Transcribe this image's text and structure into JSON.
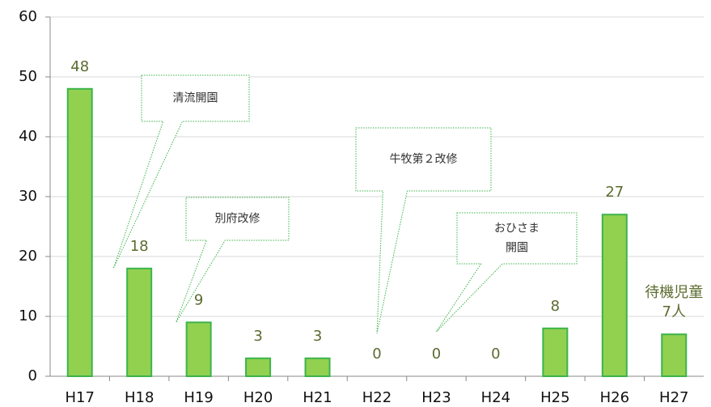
{
  "chart_data": {
    "type": "bar",
    "categories": [
      "H17",
      "H18",
      "H19",
      "H20",
      "H21",
      "H22",
      "H23",
      "H24",
      "H25",
      "H26",
      "H27"
    ],
    "values": [
      48,
      18,
      9,
      3,
      3,
      0,
      0,
      0,
      8,
      27,
      7
    ],
    "value_labels": [
      "48",
      "18",
      "9",
      "3",
      "3",
      "0",
      "0",
      "0",
      "8",
      "27",
      "待機児童\n7人"
    ],
    "color": "#92d050",
    "edge_color": "#3cb44b",
    "ylim": [
      0,
      60
    ],
    "yticks": [
      0,
      10,
      20,
      30,
      40,
      50,
      60
    ],
    "grid": true,
    "annotations": [
      {
        "text": "清流開園",
        "target": "H18"
      },
      {
        "text": "別府改修",
        "target": "H19"
      },
      {
        "text": "牛牧第２改修",
        "target": "H22"
      },
      {
        "text": "おひさま\n開園",
        "target": "H23"
      }
    ]
  }
}
